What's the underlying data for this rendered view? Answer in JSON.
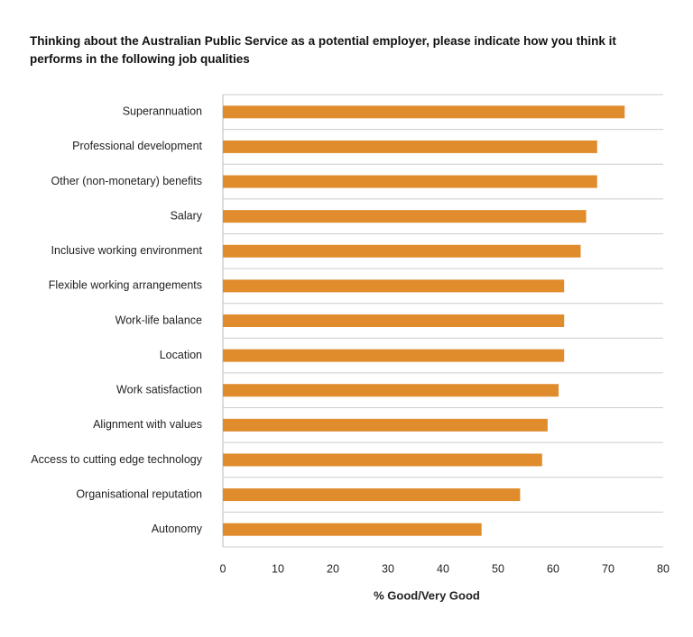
{
  "chart_data": {
    "type": "hbar",
    "title": "Thinking about the Australian Public Service as a potential employer, please indicate how you think it performs in the following job qualities",
    "x_label": "% Good/Very Good",
    "categories": [
      "Superannuation",
      "Professional development",
      "Other (non-monetary) benefits",
      "Salary",
      "Inclusive working environment",
      "Flexible working arrangements",
      "Work-life balance",
      "Location",
      "Work satisfaction",
      "Alignment with values",
      "Access to cutting edge technology",
      "Organisational reputation",
      "Autonomy"
    ],
    "values": [
      73,
      68,
      68,
      66,
      65,
      62,
      62,
      62,
      61,
      59,
      58,
      54,
      47
    ],
    "color": "#e08b2c",
    "xlim": [
      0,
      80
    ],
    "xticks": [
      0,
      10,
      20,
      30,
      40,
      50,
      60,
      70,
      80
    ]
  }
}
